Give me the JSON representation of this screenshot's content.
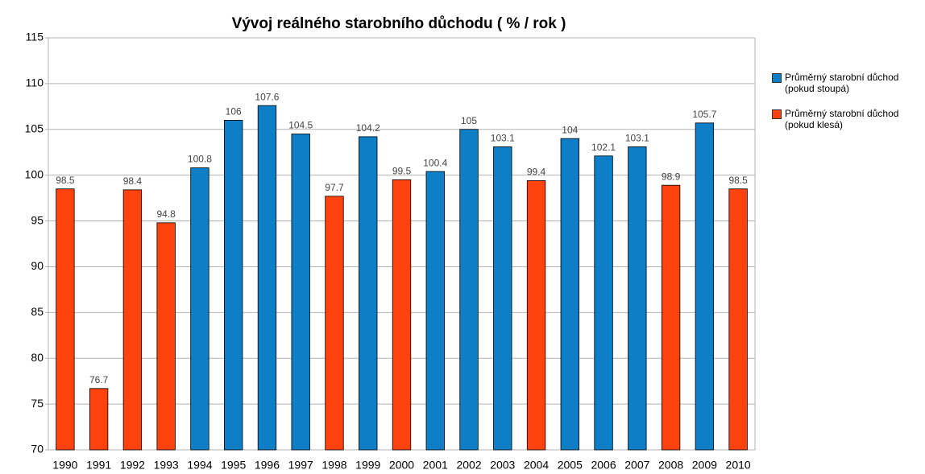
{
  "chart_data": {
    "type": "bar",
    "title": "Vývoj reálného starobního důchodu ( % / rok )",
    "categories": [
      "1990",
      "1991",
      "1992",
      "1993",
      "1994",
      "1995",
      "1996",
      "1997",
      "1998",
      "1999",
      "2000",
      "2001",
      "2002",
      "2003",
      "2004",
      "2005",
      "2006",
      "2007",
      "2008",
      "2009",
      "2010"
    ],
    "series": [
      {
        "name": "Průměrný starobní důchod (pokud stoupá)",
        "color": "#0e7ec6",
        "values": [
          null,
          null,
          null,
          null,
          100.8,
          106,
          107.6,
          104.5,
          null,
          104.2,
          null,
          100.4,
          105,
          103.1,
          null,
          104,
          102.1,
          103.1,
          null,
          105.7,
          null
        ]
      },
      {
        "name": "Průměrný starobní důchod (pokud klesá)",
        "color": "#ff420e",
        "values": [
          98.5,
          76.7,
          98.4,
          94.8,
          null,
          null,
          null,
          null,
          97.7,
          null,
          99.5,
          null,
          null,
          null,
          99.4,
          null,
          null,
          null,
          98.9,
          null,
          98.5
        ]
      }
    ],
    "ylim": [
      70,
      115
    ],
    "yticks": [
      70,
      75,
      80,
      85,
      90,
      95,
      100,
      105,
      110,
      115
    ],
    "grid": true,
    "legend": "right"
  }
}
